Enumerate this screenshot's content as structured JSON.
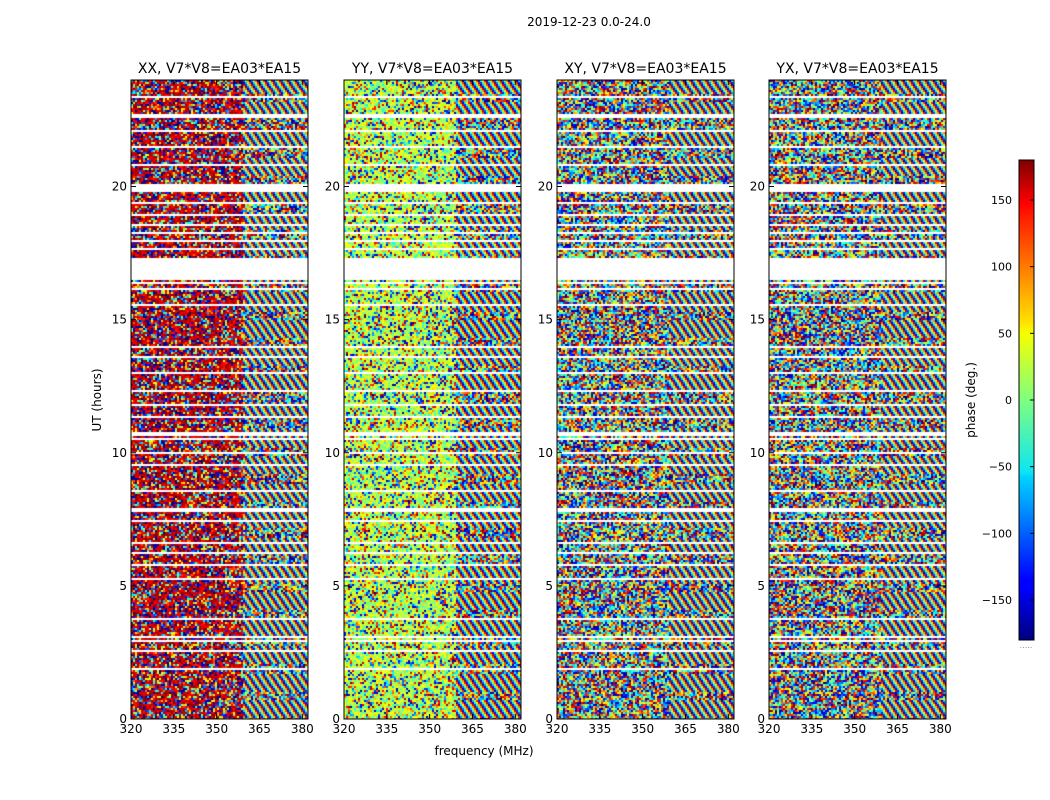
{
  "figure": {
    "suptitle": "2019-12-23 0.0-24.0"
  },
  "chart_data": {
    "type": "heatmap",
    "xlabel": "frequency (MHz)",
    "ylabel": "UT (hours)",
    "xlim": [
      320,
      382
    ],
    "ylim": [
      0,
      24
    ],
    "xticks": [
      320,
      335,
      350,
      365,
      380
    ],
    "yticks": [
      0,
      5,
      10,
      15,
      20
    ],
    "colorbar": {
      "label": "phase (deg.)",
      "range": [
        -180,
        180
      ],
      "ticks": [
        150,
        100,
        50,
        0,
        -50,
        -100,
        -150
      ],
      "tick_labels": [
        "150",
        "100",
        "50",
        "0",
        "−50",
        "−100",
        "−150"
      ],
      "colormap": "jet",
      "footer": "....."
    },
    "panels": [
      {
        "title": "XX, V7*V8=EA03*EA15",
        "pol": "XX",
        "phase_offset_deg": 160,
        "offset_stripes_to_MHz": 359
      },
      {
        "title": "YY, V7*V8=EA03*EA15",
        "pol": "YY",
        "phase_offset_deg": 20,
        "offset_stripes_to_MHz": 359
      },
      {
        "title": "XY, V7*V8=EA03*EA15",
        "pol": "XY",
        "phase_offset_deg": null
      },
      {
        "title": "YX, V7*V8=EA03*EA15",
        "pol": "YX",
        "phase_offset_deg": null
      }
    ],
    "flagged_UT_ranges_hours": [
      [
        0.08,
        0.12
      ],
      [
        0.62,
        0.66
      ],
      [
        1.38,
        1.42
      ],
      [
        1.85,
        1.9
      ],
      [
        2.55,
        2.62
      ],
      [
        2.88,
        2.97
      ],
      [
        3.06,
        3.12
      ],
      [
        3.7,
        3.78
      ],
      [
        3.93,
        3.98
      ],
      [
        4.75,
        4.8
      ],
      [
        5.25,
        5.32
      ],
      [
        5.78,
        5.82
      ],
      [
        6.18,
        6.24
      ],
      [
        6.6,
        6.66
      ],
      [
        7.42,
        7.48
      ],
      [
        7.78,
        7.9
      ],
      [
        8.12,
        8.18
      ],
      [
        8.55,
        8.6
      ],
      [
        9.1,
        9.16
      ],
      [
        9.48,
        9.55
      ],
      [
        9.95,
        10.0
      ],
      [
        10.45,
        10.52
      ],
      [
        10.65,
        10.75
      ],
      [
        11.3,
        11.36
      ],
      [
        11.72,
        11.8
      ],
      [
        12.28,
        12.33
      ],
      [
        12.95,
        13.0
      ],
      [
        13.55,
        13.62
      ],
      [
        13.9,
        14.02
      ],
      [
        14.58,
        14.64
      ],
      [
        15.48,
        15.58
      ],
      [
        16.1,
        16.2
      ],
      [
        16.32,
        16.4
      ],
      [
        16.48,
        17.3
      ],
      [
        17.6,
        17.7
      ],
      [
        17.95,
        18.0
      ],
      [
        18.22,
        18.3
      ],
      [
        18.55,
        18.6
      ],
      [
        18.88,
        18.95
      ],
      [
        19.35,
        19.4
      ],
      [
        19.8,
        20.1
      ],
      [
        20.78,
        20.83
      ],
      [
        21.45,
        21.5
      ],
      [
        22.08,
        22.13
      ],
      [
        22.58,
        22.72
      ],
      [
        23.32,
        23.38
      ],
      [
        23.6,
        23.65
      ]
    ]
  }
}
